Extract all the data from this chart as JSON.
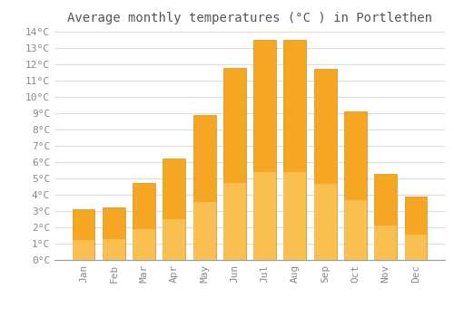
{
  "title": "Average monthly temperatures (°C ) in Portlethen",
  "months": [
    "Jan",
    "Feb",
    "Mar",
    "Apr",
    "May",
    "Jun",
    "Jul",
    "Aug",
    "Sep",
    "Oct",
    "Nov",
    "Dec"
  ],
  "values": [
    3.1,
    3.2,
    4.7,
    6.2,
    8.9,
    11.8,
    13.5,
    13.5,
    11.7,
    9.1,
    5.3,
    3.9
  ],
  "bar_color_top": "#F5A623",
  "bar_color_bottom": "#FFD980",
  "bar_edge_color": "#D4921A",
  "ylim": [
    0,
    14
  ],
  "ytick_step": 1,
  "background_color": "#FFFFFF",
  "grid_color": "#DDDDDD",
  "title_fontsize": 10,
  "tick_fontsize": 8,
  "font_family": "monospace"
}
